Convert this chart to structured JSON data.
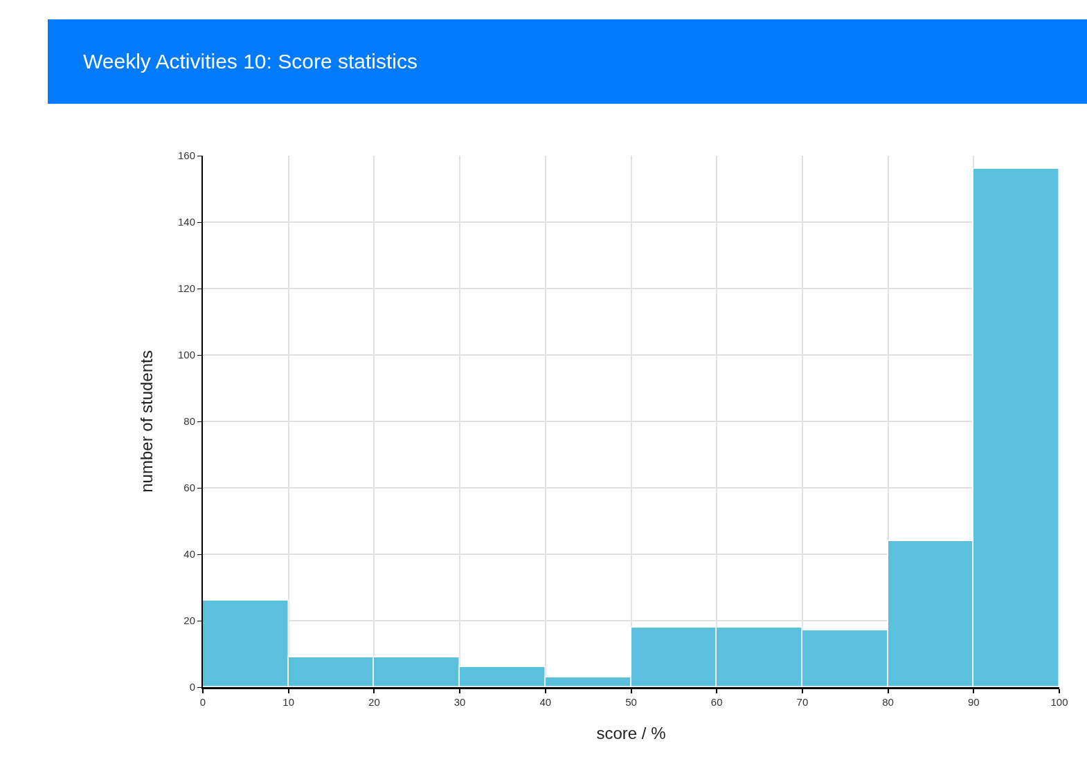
{
  "chart_data": {
    "type": "histogram",
    "title": "Weekly Activities 10: Score statistics",
    "xlabel": "score / %",
    "ylabel": "number of students",
    "bins": [
      0,
      10,
      20,
      30,
      40,
      50,
      60,
      70,
      80,
      90,
      100
    ],
    "values": [
      26,
      9,
      9,
      6,
      3,
      18,
      18,
      17,
      44,
      156
    ],
    "color": "#5bc0de",
    "xlim": [
      0,
      100
    ],
    "xticks": [
      0,
      10,
      20,
      30,
      40,
      50,
      60,
      70,
      80,
      90,
      100
    ],
    "ylim": [
      0,
      160
    ],
    "yticks": [
      0,
      20,
      40,
      60,
      80,
      100,
      120,
      140,
      160
    ],
    "grid": true
  }
}
